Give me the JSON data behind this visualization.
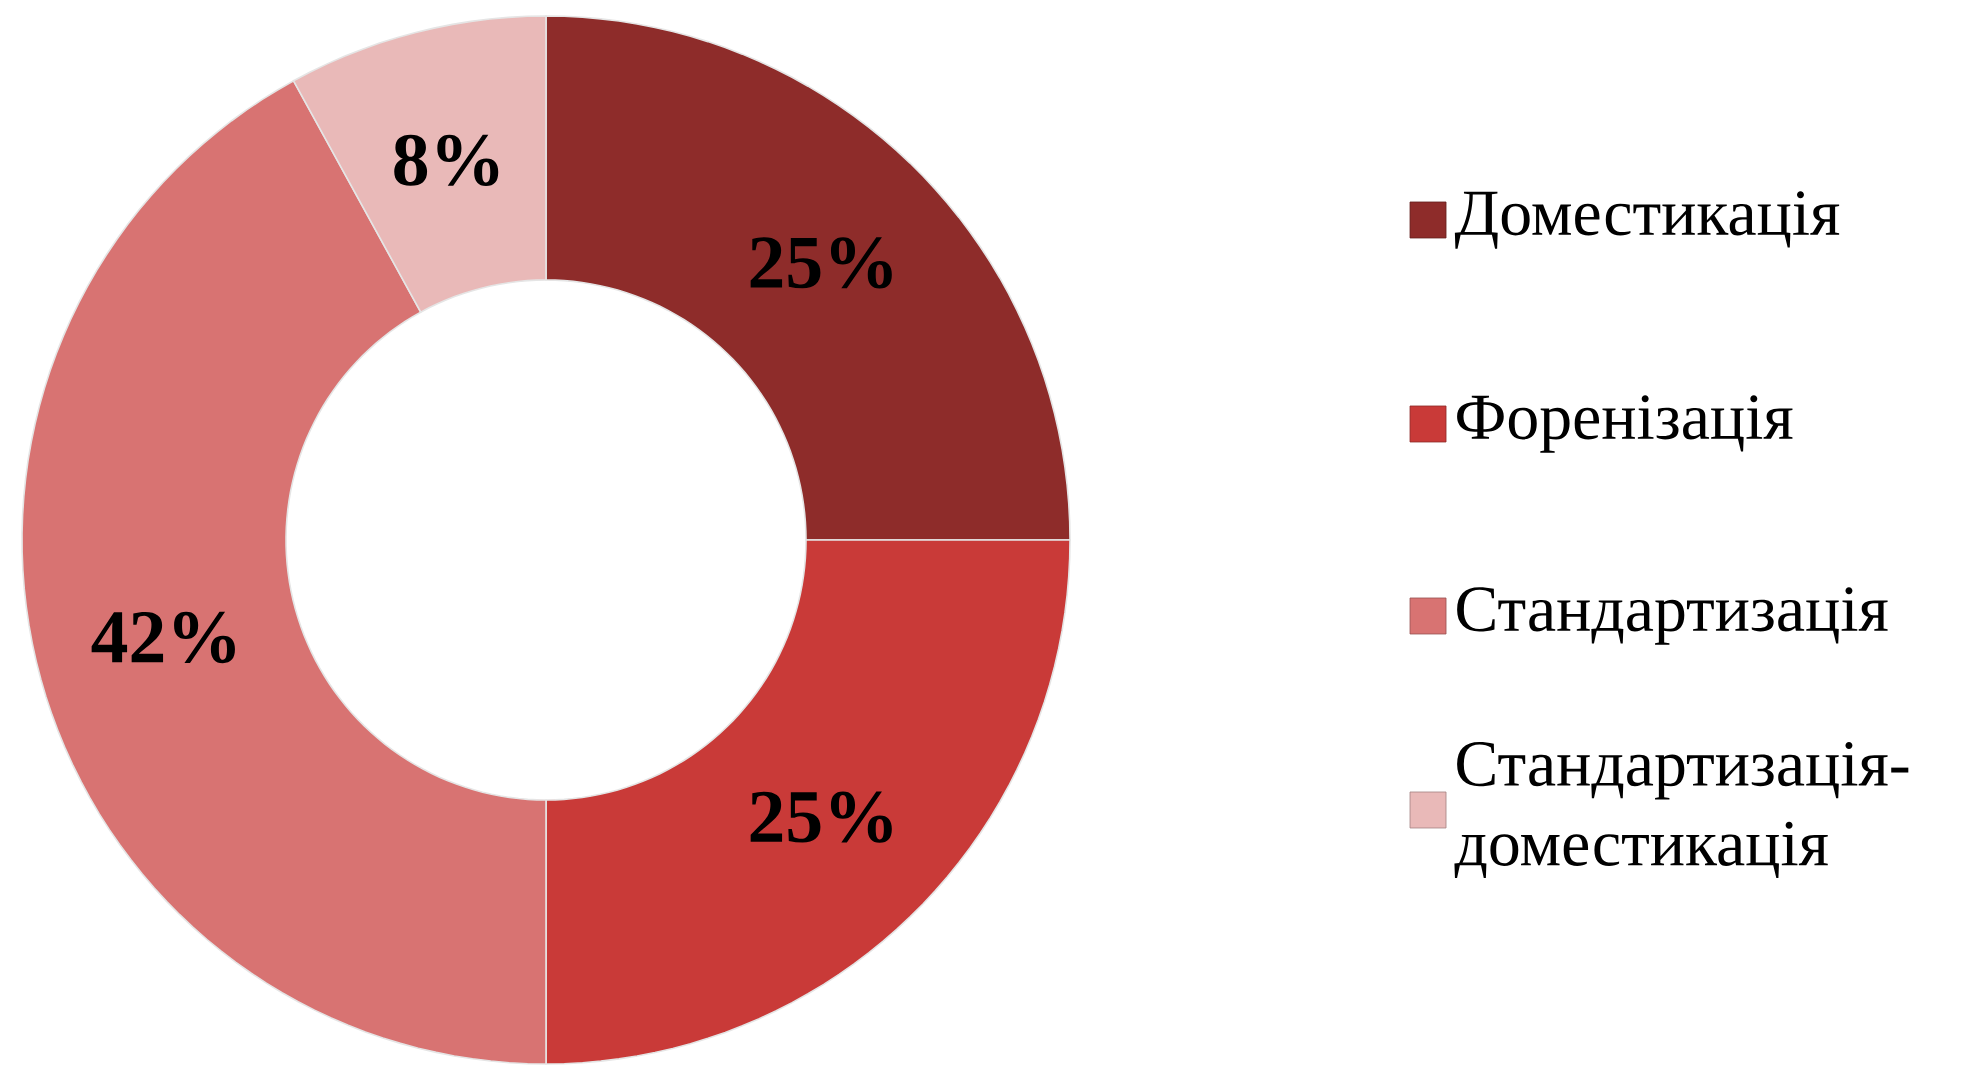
{
  "chart_data": {
    "type": "donut",
    "categories": [
      "Доместикація",
      "Форенізація",
      "Стандартизація",
      "Стандартизація-доместикація"
    ],
    "values": [
      25,
      25,
      42,
      8
    ],
    "colors": [
      "#8e2c2a",
      "#c93a38",
      "#d87372",
      "#e9b9b8"
    ],
    "value_labels": [
      "25%",
      "25%",
      "42%",
      "8%"
    ],
    "legend": "right"
  }
}
